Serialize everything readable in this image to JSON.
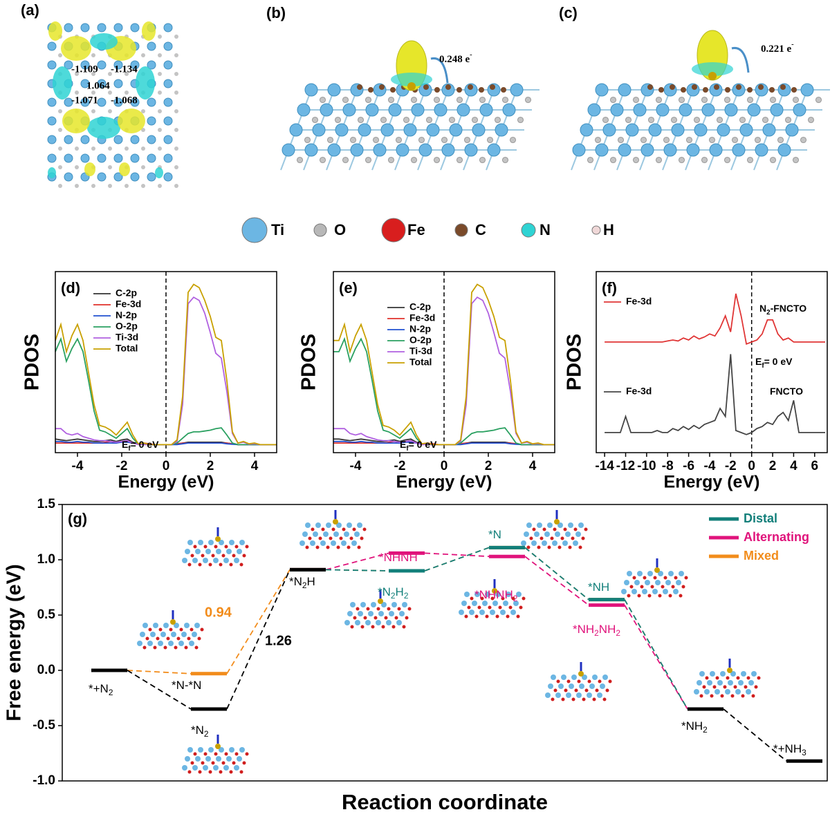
{
  "panels": [
    {
      "label": "(a)",
      "charges": [
        -1.109,
        -1.134,
        1.064,
        -1.071,
        -1.068
      ]
    },
    {
      "label": "(b)",
      "transfer": [
        "0.248 e",
        "-"
      ]
    },
    {
      "label": "(c)",
      "transfer": [
        "0.221 e",
        "-"
      ]
    }
  ],
  "atom_legend": [
    {
      "symbol": "Ti",
      "color": "#6cb6e3"
    },
    {
      "symbol": "O",
      "color": "#b8b8b8"
    },
    {
      "symbol": "Fe",
      "color": "#d81e1e"
    },
    {
      "symbol": "C",
      "color": "#7a4a2a"
    },
    {
      "symbol": "N",
      "color": "#2fd3d3"
    },
    {
      "symbol": "H",
      "color": "#f0d8d8"
    }
  ],
  "chart_data": [
    {
      "type": "line",
      "label": "(d)",
      "ylabel": "PDOS",
      "xlabel": "Energy (eV)",
      "xlim": [
        -5,
        5
      ],
      "xticks": [
        -4,
        -2,
        0,
        2,
        4
      ],
      "ylim": [
        -0.5,
        10.8
      ],
      "vline": 0,
      "annotations": [
        [
          "E",
          "f",
          "= 0 eV"
        ]
      ],
      "x": [
        -5,
        -4.75,
        -4.5,
        -4.25,
        -4,
        -3.75,
        -3.5,
        -3.25,
        -3,
        -2.75,
        -2.5,
        -2.25,
        -2,
        -1.75,
        -1.5,
        -1.25,
        -1,
        -0.75,
        -0.5,
        -0.25,
        0,
        0.25,
        0.5,
        0.75,
        1,
        1.25,
        1.5,
        1.75,
        2,
        2.25,
        2.5,
        2.75,
        3,
        3.25,
        3.5,
        3.75,
        4,
        4.25,
        4.5,
        4.75,
        5
      ],
      "series": [
        {
          "name": "C-2p",
          "color": "#333333",
          "values": [
            0.35,
            0.3,
            0.25,
            0.3,
            0.35,
            0.3,
            0.25,
            0.2,
            0.2,
            0.25,
            0.3,
            0.2,
            0.3,
            0.35,
            0.15,
            0.05,
            0.05,
            0,
            0,
            0,
            0,
            0,
            0.05,
            0.1,
            0.15,
            0.15,
            0.15,
            0.15,
            0.15,
            0.15,
            0.15,
            0.1,
            0.05,
            0,
            0,
            0,
            0,
            0,
            0,
            0,
            0
          ]
        },
        {
          "name": "Fe-3d",
          "color": "#e0302a",
          "values": [
            0.1,
            0.1,
            0.1,
            0.1,
            0.1,
            0.1,
            0.1,
            0.1,
            0.1,
            0.15,
            0.2,
            0.1,
            0.2,
            0.25,
            0.1,
            0.05,
            0.1,
            0.05,
            0,
            0,
            0,
            0,
            0.05,
            0.1,
            0.1,
            0.1,
            0.1,
            0.1,
            0.1,
            0.1,
            0.1,
            0.1,
            0.05,
            0,
            0,
            0,
            0,
            0,
            0,
            0,
            0
          ]
        },
        {
          "name": "N-2p",
          "color": "#2050d0",
          "values": [
            0.2,
            0.2,
            0.15,
            0.15,
            0.2,
            0.15,
            0.15,
            0.1,
            0.1,
            0.1,
            0.1,
            0.1,
            0.15,
            0.15,
            0.1,
            0.02,
            0.02,
            0,
            0,
            0,
            0,
            0,
            0,
            0.05,
            0.1,
            0.1,
            0.1,
            0.1,
            0.1,
            0.1,
            0.1,
            0.05,
            0.02,
            0,
            0,
            0,
            0,
            0,
            0,
            0,
            0
          ]
        },
        {
          "name": "O-2p",
          "color": "#2aa060",
          "values": [
            5.8,
            6.6,
            5.2,
            6.0,
            6.6,
            5.8,
            4.0,
            2.1,
            0.9,
            0.8,
            0.6,
            0.4,
            0.7,
            1.0,
            0.4,
            0.03,
            0.05,
            0,
            0,
            0,
            0,
            0,
            0.1,
            0.4,
            0.7,
            0.8,
            0.8,
            0.85,
            0.9,
            1.0,
            1.05,
            0.6,
            0.1,
            0,
            0,
            0,
            0,
            0,
            0,
            0,
            0
          ]
        },
        {
          "name": "Ti-3d",
          "color": "#b060e0",
          "values": [
            1.0,
            1.0,
            0.7,
            0.6,
            0.7,
            0.5,
            0.4,
            0.3,
            0.25,
            0.25,
            0.2,
            0.15,
            0.2,
            0.25,
            0.1,
            0,
            0,
            0,
            0,
            0,
            0,
            0,
            0.2,
            2.5,
            8.8,
            9.2,
            9.0,
            8.2,
            7.0,
            5.7,
            5.4,
            3.3,
            0.7,
            0.1,
            0.15,
            0.03,
            0.05,
            0,
            0,
            0,
            0
          ]
        },
        {
          "name": "Total",
          "color": "#c8a000",
          "values": [
            6.5,
            7.5,
            5.8,
            6.8,
            7.5,
            6.5,
            4.5,
            2.5,
            1.2,
            1.1,
            0.9,
            0.6,
            1.0,
            1.4,
            0.6,
            0.05,
            0.1,
            0,
            0,
            0,
            0,
            0,
            0.3,
            3.0,
            9.5,
            10.0,
            9.8,
            9.0,
            8.0,
            6.7,
            6.5,
            4.0,
            0.8,
            0.1,
            0.2,
            0.05,
            0.1,
            0,
            0,
            0,
            0
          ]
        }
      ]
    },
    {
      "type": "line",
      "label": "(e)",
      "ylabel": "PDOS",
      "xlabel": "Energy (eV)",
      "xlim": [
        -5,
        5
      ],
      "xticks": [
        -4,
        -2,
        0,
        2,
        4
      ],
      "ylim": [
        -0.5,
        10.8
      ],
      "vline": 0,
      "annotations": [
        [
          "E",
          "f",
          "= 0 eV"
        ]
      ],
      "x": [
        -5,
        -4.75,
        -4.5,
        -4.25,
        -4,
        -3.75,
        -3.5,
        -3.25,
        -3,
        -2.75,
        -2.5,
        -2.25,
        -2,
        -1.75,
        -1.5,
        -1.25,
        -1,
        -0.75,
        -0.5,
        -0.25,
        0,
        0.25,
        0.5,
        0.75,
        1,
        1.25,
        1.5,
        1.75,
        2,
        2.25,
        2.5,
        2.75,
        3,
        3.25,
        3.5,
        3.75,
        4,
        4.25,
        4.5,
        4.75,
        5
      ],
      "series": [
        {
          "name": "C-2p",
          "color": "#333333",
          "values": [
            0.35,
            0.35,
            0.3,
            0.25,
            0.3,
            0.35,
            0.3,
            0.25,
            0.2,
            0.2,
            0.25,
            0.3,
            0.2,
            0.3,
            0.35,
            0.15,
            0.05,
            0.05,
            0,
            0,
            0,
            0,
            0,
            0.05,
            0.1,
            0.15,
            0.15,
            0.15,
            0.15,
            0.15,
            0.15,
            0.15,
            0.1,
            0.05,
            0,
            0,
            0,
            0,
            0,
            0,
            0
          ]
        },
        {
          "name": "Fe-3d",
          "color": "#e0302a",
          "values": [
            0.1,
            0.1,
            0.1,
            0.1,
            0.1,
            0.1,
            0.1,
            0.1,
            0.1,
            0.1,
            0.15,
            0.2,
            0.1,
            0.2,
            0.25,
            0.1,
            0.05,
            0.1,
            0.05,
            0,
            0,
            0,
            0,
            0.05,
            0.1,
            0.1,
            0.1,
            0.1,
            0.1,
            0.1,
            0.1,
            0.1,
            0.1,
            0.05,
            0,
            0,
            0,
            0,
            0,
            0,
            0
          ]
        },
        {
          "name": "N-2p",
          "color": "#2050d0",
          "values": [
            0.2,
            0.2,
            0.2,
            0.15,
            0.15,
            0.2,
            0.15,
            0.15,
            0.1,
            0.1,
            0.1,
            0.1,
            0.1,
            0.15,
            0.15,
            0.1,
            0.02,
            0.02,
            0,
            0,
            0,
            0,
            0,
            0,
            0.05,
            0.1,
            0.1,
            0.1,
            0.1,
            0.1,
            0.1,
            0.1,
            0.05,
            0.02,
            0,
            0,
            0,
            0,
            0,
            0,
            0
          ]
        },
        {
          "name": "O-2p",
          "color": "#2aa060",
          "values": [
            5.8,
            5.8,
            6.6,
            5.2,
            6.0,
            6.6,
            5.8,
            4.0,
            2.1,
            0.9,
            0.8,
            0.6,
            0.4,
            0.7,
            1.0,
            0.4,
            0.03,
            0.05,
            0,
            0,
            0,
            0,
            0,
            0.1,
            0.4,
            0.7,
            0.8,
            0.8,
            0.85,
            0.9,
            1.0,
            1.05,
            0.6,
            0.1,
            0,
            0,
            0,
            0,
            0,
            0,
            0
          ]
        },
        {
          "name": "Ti-3d",
          "color": "#b060e0",
          "values": [
            1.0,
            1.0,
            1.0,
            0.7,
            0.6,
            0.7,
            0.5,
            0.4,
            0.3,
            0.25,
            0.25,
            0.2,
            0.15,
            0.2,
            0.25,
            0.1,
            0,
            0,
            0,
            0,
            0,
            0,
            0,
            0.2,
            2.5,
            8.8,
            9.2,
            9.0,
            8.2,
            7.0,
            5.7,
            5.4,
            3.3,
            0.7,
            0.1,
            0.15,
            0.03,
            0.05,
            0,
            0,
            0
          ]
        },
        {
          "name": "Total",
          "color": "#c8a000",
          "values": [
            6.5,
            6.5,
            7.5,
            5.8,
            6.8,
            7.5,
            6.5,
            4.5,
            2.5,
            1.2,
            1.1,
            0.9,
            0.6,
            1.0,
            1.4,
            0.6,
            0.05,
            0.1,
            0,
            0,
            0,
            0,
            0,
            0.3,
            3.0,
            9.5,
            10.0,
            9.8,
            9.0,
            8.0,
            6.7,
            6.5,
            4.0,
            0.8,
            0.1,
            0.2,
            0.05,
            0.1,
            0,
            0,
            0
          ]
        }
      ]
    },
    {
      "type": "line",
      "label": "(f)",
      "ylabel": "PDOS",
      "xlabel": "Energy (eV)",
      "xlim": [
        -14.8,
        7.2
      ],
      "xticks": [
        -14,
        -12,
        -10,
        -8,
        -6,
        -4,
        -2,
        0,
        2,
        4,
        6
      ],
      "ylim": [
        -1,
        8
      ],
      "vline": 0,
      "annotations": [
        [
          "N",
          "2",
          "-FNCTO"
        ],
        [
          "FNCTO"
        ],
        [
          "E",
          "f",
          "= 0 eV"
        ]
      ],
      "x": [
        -14,
        -13.5,
        -13,
        -12.5,
        -12,
        -11.5,
        -11,
        -10.5,
        -10,
        -9.5,
        -9,
        -8.5,
        -8,
        -7.5,
        -7,
        -6.5,
        -6,
        -5.5,
        -5,
        -4.5,
        -4,
        -3.5,
        -3,
        -2.5,
        -2,
        -1.5,
        -1,
        -0.5,
        0,
        0.5,
        1,
        1.5,
        2,
        2.5,
        3,
        3.5,
        4,
        4.5,
        5,
        5.5,
        6,
        6.5,
        7
      ],
      "series": [
        {
          "name": "Fe-3d",
          "color": "#e03535",
          "values": [
            4.5,
            4.5,
            4.5,
            4.5,
            4.5,
            4.5,
            4.5,
            4.5,
            4.5,
            4.5,
            4.5,
            4.5,
            4.55,
            4.6,
            4.55,
            4.7,
            4.6,
            4.8,
            4.65,
            4.75,
            4.9,
            4.8,
            5.2,
            5.8,
            5.0,
            6.9,
            5.8,
            4.4,
            4.5,
            4.6,
            4.9,
            5.6,
            5.6,
            4.9,
            4.6,
            4.7,
            4.5,
            4.5,
            4.5,
            4.5,
            4.5,
            4.5,
            4.5
          ]
        },
        {
          "name": "Fe-3d",
          "color": "#444444",
          "values": [
            0,
            0,
            0,
            0,
            0.8,
            0,
            0,
            0,
            0,
            0,
            0.1,
            0,
            0,
            0.2,
            0.1,
            0.3,
            0.15,
            0.35,
            0.2,
            0.4,
            0.5,
            0.6,
            1.2,
            0.8,
            3.9,
            0.1,
            0,
            -0.1,
            0,
            0.2,
            0.3,
            0.5,
            0.4,
            0.8,
            1.0,
            0.6,
            1.6,
            0,
            0,
            0,
            0,
            0,
            0
          ]
        }
      ]
    },
    {
      "type": "step",
      "label": "(g)",
      "ylabel": "Free energy (eV)",
      "xlabel": "Reaction coordinate",
      "ylim": [
        -1,
        1.5
      ],
      "yticks": [
        {
          "value": -1,
          "label": "-1.0"
        },
        -0.5,
        {
          "value": 0,
          "label": "0.0"
        },
        0.5,
        {
          "value": 1,
          "label": "1.0"
        },
        1.5
      ],
      "categories": [
        null,
        null,
        null,
        null,
        null,
        null,
        null,
        null
      ],
      "series": [
        {
          "color": "#000000",
          "values": [
            0,
            -0.35,
            0.91,
            null,
            null,
            null,
            -0.35,
            -0.82
          ]
        },
        {
          "name": "Distal",
          "color": "#127f7a",
          "values": [
            null,
            null,
            0.91,
            0.9,
            1.11,
            0.64,
            -0.35,
            null
          ]
        },
        {
          "name": "Alternating",
          "color": "#e0137b",
          "values": [
            null,
            null,
            0.91,
            1.06,
            1.03,
            0.59,
            -0.35,
            null
          ]
        },
        {
          "name": "Mixed",
          "color": "#f28c1b",
          "values": [
            0,
            -0.03,
            0.91,
            0.9,
            1.11,
            0.64,
            -0.35,
            null
          ]
        }
      ],
      "annotations": [
        {
          "text": [
            "*+N",
            "2"
          ],
          "color": "#000000"
        },
        {
          "text": [
            "*N",
            "2"
          ],
          "color": "#000000"
        },
        {
          "text": [
            "*N-*N"
          ],
          "color": "#000000"
        },
        {
          "text": [
            "*N",
            "2",
            "H"
          ],
          "color": "#000000"
        },
        {
          "text": [
            "*NHNH"
          ],
          "color": "#e0137b"
        },
        {
          "text": [
            "*N",
            "2",
            "H",
            "2"
          ],
          "color": "#127f7a"
        },
        {
          "text": [
            "*N"
          ],
          "color": "#127f7a"
        },
        {
          "text": [
            "*NHNH",
            "2"
          ],
          "color": "#e0137b"
        },
        {
          "text": [
            "*NH"
          ],
          "color": "#127f7a"
        },
        {
          "text": [
            "*NH",
            "2",
            "NH",
            "2"
          ],
          "color": "#e0137b"
        },
        {
          "text": [
            "*NH",
            "2"
          ],
          "color": "#000000"
        },
        {
          "text": [
            "*+NH",
            "3"
          ],
          "color": "#000000"
        }
      ],
      "barriers": [
        {
          "value": 0.94,
          "color": "#f28c1b"
        },
        {
          "value": 1.26,
          "color": "#000000"
        }
      ]
    }
  ]
}
